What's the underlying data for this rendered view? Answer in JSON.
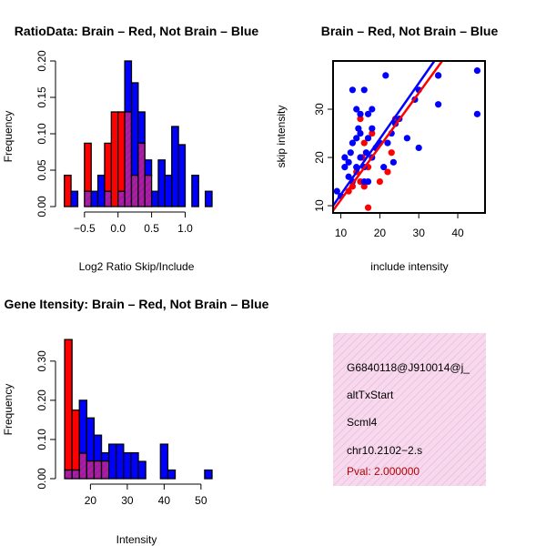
{
  "colors": {
    "red": "#ff0000",
    "blue": "#0000ff",
    "purple": "#9b1fa6",
    "overlap_hatch": "#e0148a",
    "panel_fill": "#f7d9ee",
    "panel_hatch": "#f0b6dc",
    "pval": "#b00000"
  },
  "chart_data": [
    {
      "type": "bar",
      "id": "ratio_hist",
      "title": "RatioData: Brain – Red, Not Brain – Blue",
      "xlabel": "Log2 Ratio Skip/Include",
      "ylabel": "Frequency",
      "xlim": [
        -0.85,
        1.4
      ],
      "ylim": [
        0,
        0.2
      ],
      "xticks": [
        -0.5,
        0.0,
        0.5,
        1.0
      ],
      "xtick_labels": [
        "−0.5",
        "0.0",
        "0.5",
        "1.0"
      ],
      "yticks": [
        0.0,
        0.05,
        0.1,
        0.15,
        0.2
      ],
      "ytick_labels": [
        "0.00",
        "0.05",
        "0.10",
        "0.15",
        "0.20"
      ],
      "bin_start": -0.8,
      "bin_width": 0.1,
      "series": [
        {
          "name": "Brain",
          "color": "red",
          "values": [
            0.043,
            0,
            0,
            0.087,
            0,
            0,
            0.087,
            0.13,
            0.13,
            0.13,
            0.043,
            0.087,
            0.043,
            0,
            0,
            0,
            0,
            0,
            0,
            0,
            0
          ]
        },
        {
          "name": "Not Brain",
          "color": "blue",
          "values": [
            0,
            0.021,
            0,
            0.021,
            0.021,
            0.043,
            0.021,
            0,
            0.021,
            0.2,
            0.17,
            0.13,
            0.064,
            0.021,
            0.064,
            0.043,
            0.11,
            0.085,
            0,
            0.043,
            0,
            0.021
          ]
        }
      ]
    },
    {
      "type": "scatter",
      "id": "intensity_scatter",
      "title": "Brain – Red, Not Brain – Blue",
      "xlabel": "include intensity",
      "ylabel": "skip intensity",
      "xlim": [
        8,
        47
      ],
      "ylim": [
        8.5,
        40
      ],
      "xticks": [
        10,
        20,
        30,
        40
      ],
      "yticks": [
        10,
        20,
        30
      ],
      "series": [
        {
          "name": "Brain",
          "color": "red",
          "points": [
            [
              12,
              13
            ],
            [
              13,
              14
            ],
            [
              14,
              17
            ],
            [
              15,
              15
            ],
            [
              15,
              28
            ],
            [
              15.5,
              20
            ],
            [
              16,
              23
            ],
            [
              16,
              14
            ],
            [
              17,
              9.6
            ],
            [
              17,
              18
            ],
            [
              18,
              25
            ],
            [
              19,
              22
            ],
            [
              20,
              15
            ],
            [
              22,
              17
            ],
            [
              23,
              21
            ],
            [
              24,
              28
            ],
            [
              35,
              37
            ]
          ],
          "fit": [
            [
              8,
              9
            ],
            [
              36,
              40
            ]
          ]
        },
        {
          "name": "Not Brain",
          "color": "blue",
          "points": [
            [
              9,
              13
            ],
            [
              10,
              12
            ],
            [
              11,
              18
            ],
            [
              11,
              20
            ],
            [
              12,
              16
            ],
            [
              12,
              19
            ],
            [
              12.5,
              21
            ],
            [
              13,
              23
            ],
            [
              13,
              15
            ],
            [
              13,
              34
            ],
            [
              14,
              18
            ],
            [
              14,
              24
            ],
            [
              14,
              30
            ],
            [
              14.5,
              26
            ],
            [
              15,
              29
            ],
            [
              15,
              20
            ],
            [
              15,
              25
            ],
            [
              16,
              34
            ],
            [
              16,
              15
            ],
            [
              16,
              18
            ],
            [
              16.5,
              21
            ],
            [
              17,
              24
            ],
            [
              17,
              29
            ],
            [
              17,
              15
            ],
            [
              18,
              26
            ],
            [
              18,
              30
            ],
            [
              18,
              20
            ],
            [
              19,
              22
            ],
            [
              20,
              23
            ],
            [
              21,
              18
            ],
            [
              21.5,
              37
            ],
            [
              22,
              23
            ],
            [
              23,
              25
            ],
            [
              23.5,
              19
            ],
            [
              24,
              27
            ],
            [
              25,
              28
            ],
            [
              27,
              24
            ],
            [
              29,
              32
            ],
            [
              30,
              22
            ],
            [
              30,
              34
            ],
            [
              35,
              31
            ],
            [
              35,
              37
            ],
            [
              45,
              38
            ],
            [
              45,
              29
            ]
          ],
          "fit": [
            [
              8,
              10
            ],
            [
              34,
              40
            ]
          ]
        }
      ]
    },
    {
      "type": "bar",
      "id": "intensity_hist",
      "title": "Gene Itensity: Brain – Red, Not Brain – Blue",
      "xlabel": "Intensity",
      "ylabel": "Frequency",
      "xlim": [
        12,
        53
      ],
      "ylim": [
        0,
        0.36
      ],
      "xticks": [
        20,
        30,
        40,
        50
      ],
      "yticks": [
        0.0,
        0.1,
        0.2,
        0.3
      ],
      "ytick_labels": [
        "0.00",
        "0.10",
        "0.20",
        "0.30"
      ],
      "bin_start": 13,
      "bin_width": 2,
      "series": [
        {
          "name": "Brain",
          "color": "red",
          "values": [
            0.355,
            0.175,
            0.065,
            0.045,
            0.045,
            0.045,
            0,
            0,
            0,
            0,
            0,
            0,
            0,
            0,
            0,
            0,
            0,
            0,
            0,
            0
          ]
        },
        {
          "name": "Not Brain",
          "color": "blue",
          "values": [
            0.022,
            0.022,
            0.2,
            0.155,
            0.111,
            0.066,
            0.088,
            0.088,
            0.066,
            0.066,
            0.044,
            0,
            0,
            0.088,
            0.022,
            0,
            0,
            0,
            0,
            0.022
          ]
        }
      ]
    }
  ],
  "info_panel": {
    "lines": [
      "G6840118@J910014@j_",
      "altTxStart",
      "Scml4",
      "chr10.2102−2.s"
    ],
    "pval": "Pval: 2.000000"
  }
}
